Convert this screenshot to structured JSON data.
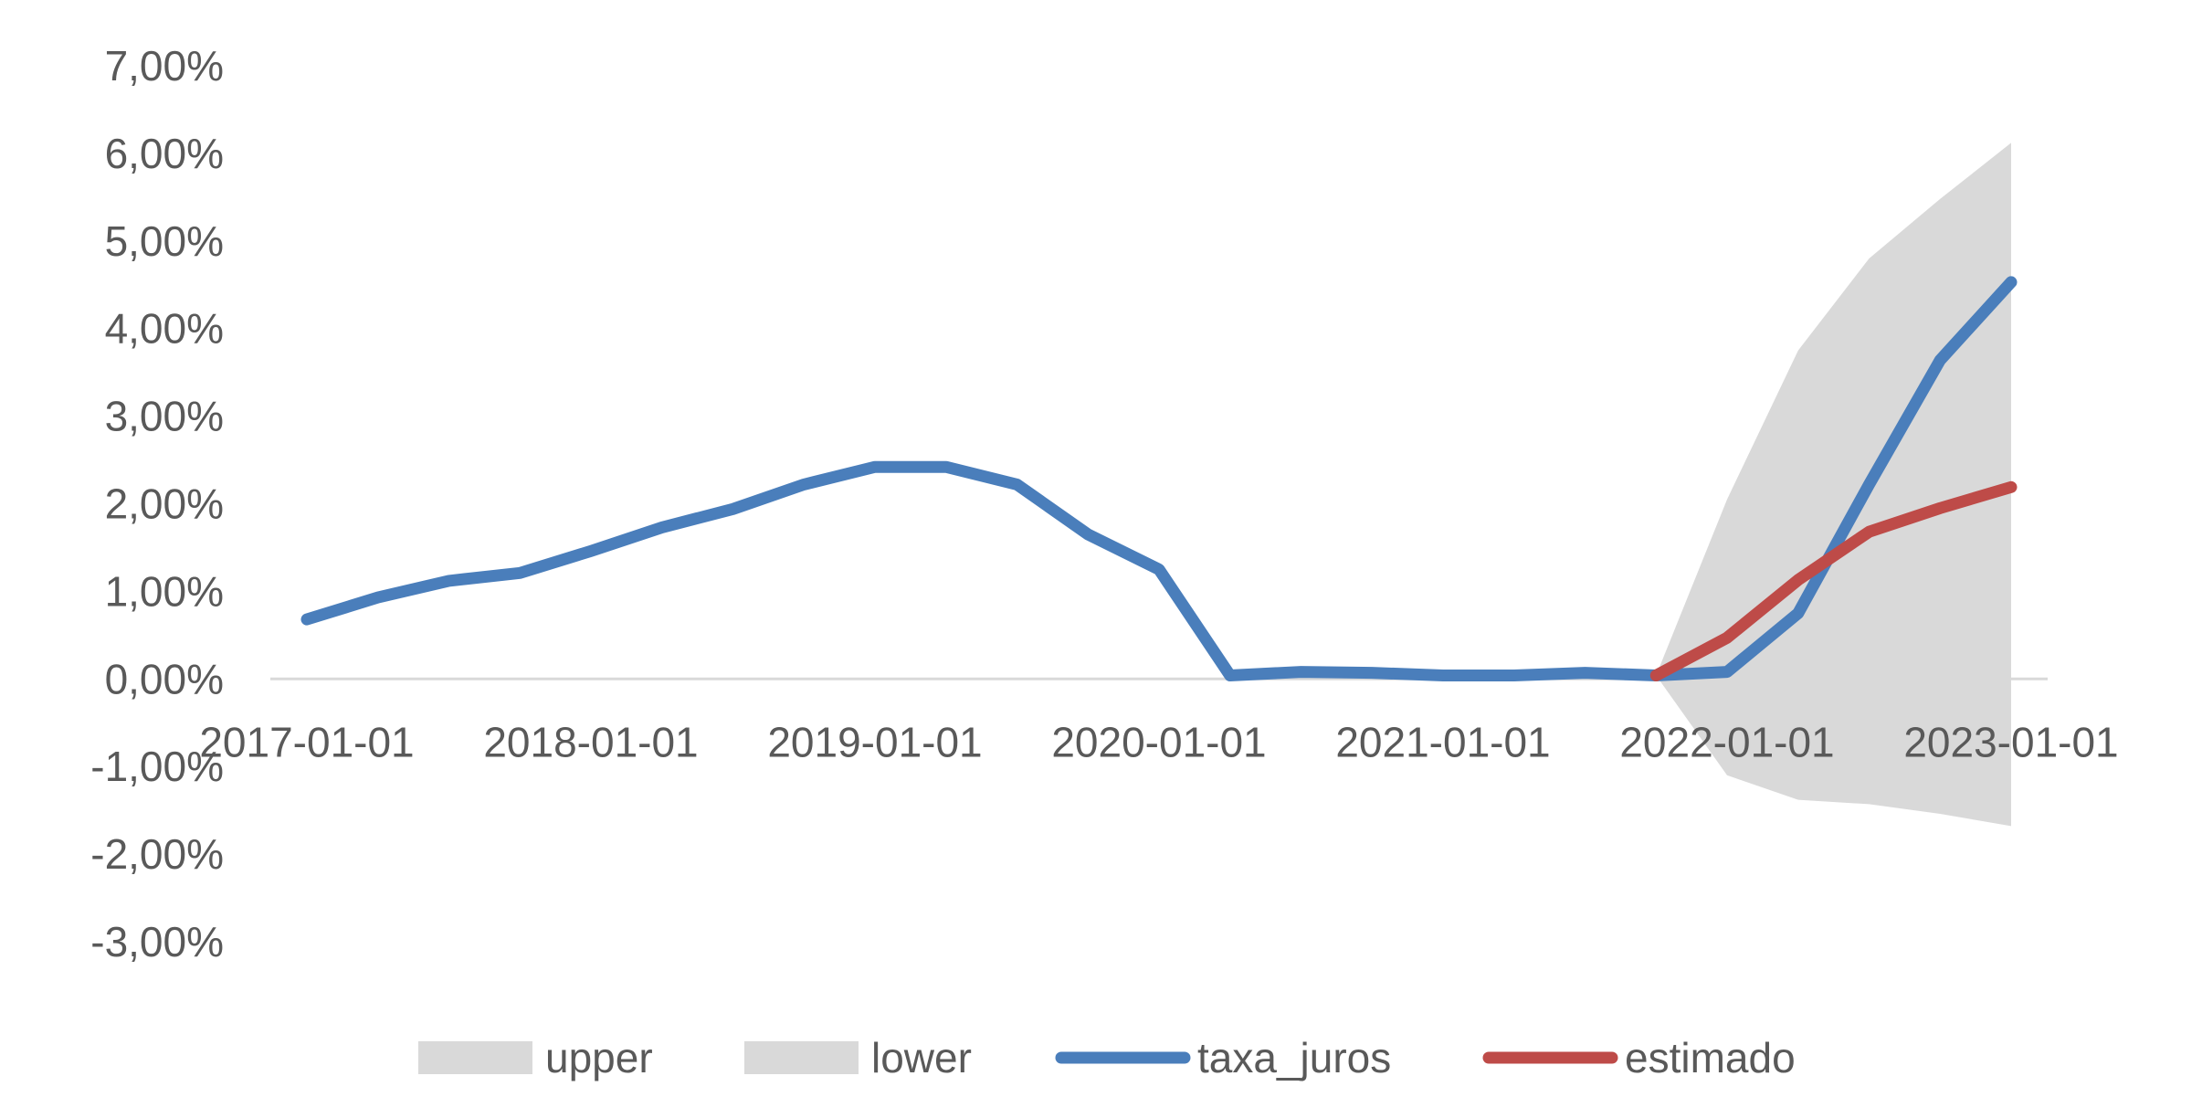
{
  "chart_data": {
    "type": "line",
    "title": "",
    "xlabel": "",
    "ylabel": "",
    "ylim": [
      -0.03,
      0.07
    ],
    "y_tick_values": [
      -0.03,
      -0.02,
      -0.01,
      0.0,
      0.01,
      0.02,
      0.03,
      0.04,
      0.05,
      0.06,
      0.07
    ],
    "y_tick_labels": [
      "-3,00%",
      "-2,00%",
      "-1,00%",
      "0,00%",
      "1,00%",
      "2,00%",
      "3,00%",
      "4,00%",
      "5,00%",
      "6,00%",
      "7,00%"
    ],
    "x_tick_labels": [
      "2017-01-01",
      "2018-01-01",
      "2019-01-01",
      "2020-01-01",
      "2021-01-01",
      "2022-01-01",
      "2023-01-01"
    ],
    "x": [
      "2017-01-01",
      "2017-04-01",
      "2017-07-01",
      "2017-10-01",
      "2018-01-01",
      "2018-04-01",
      "2018-07-01",
      "2018-10-01",
      "2019-01-01",
      "2019-04-01",
      "2019-07-01",
      "2019-10-01",
      "2020-01-01",
      "2020-04-01",
      "2020-07-01",
      "2020-10-01",
      "2021-01-01",
      "2021-04-01",
      "2021-07-01",
      "2021-10-01",
      "2022-01-01",
      "2022-04-01",
      "2022-07-01",
      "2022-10-01",
      "2023-01-01"
    ],
    "grid": false,
    "legend_position": "bottom",
    "series": [
      {
        "name": "upper",
        "kind": "area-band-top",
        "color": "#d9d9d9",
        "values": [
          null,
          null,
          null,
          null,
          null,
          null,
          null,
          null,
          null,
          null,
          null,
          null,
          null,
          null,
          null,
          null,
          null,
          null,
          null,
          0.0004,
          0.0205,
          0.0375,
          0.048,
          0.0548,
          0.0612
        ]
      },
      {
        "name": "lower",
        "kind": "area-band-bottom",
        "color": "#d9d9d9",
        "values": [
          null,
          null,
          null,
          null,
          null,
          null,
          null,
          null,
          null,
          null,
          null,
          null,
          null,
          null,
          null,
          null,
          null,
          null,
          null,
          0.0004,
          -0.011,
          -0.0138,
          -0.0143,
          -0.0154,
          -0.0168
        ]
      },
      {
        "name": "taxa_juros",
        "kind": "line",
        "color": "#4a7ebb",
        "values": [
          0.0068,
          0.0093,
          0.0112,
          0.0121,
          0.0146,
          0.0173,
          0.0194,
          0.0222,
          0.0242,
          0.0242,
          0.0222,
          0.0165,
          0.0125,
          0.0004,
          0.0008,
          0.0007,
          0.0004,
          0.0004,
          0.0007,
          0.0004,
          0.0008,
          0.0075,
          0.0222,
          0.0364,
          0.0453
        ]
      },
      {
        "name": "estimado",
        "kind": "line",
        "color": "#be4b48",
        "values": [
          null,
          null,
          null,
          null,
          null,
          null,
          null,
          null,
          null,
          null,
          null,
          null,
          null,
          null,
          null,
          null,
          null,
          null,
          null,
          0.0004,
          0.0047,
          0.0113,
          0.0168,
          0.0195,
          0.0219
        ]
      }
    ]
  }
}
